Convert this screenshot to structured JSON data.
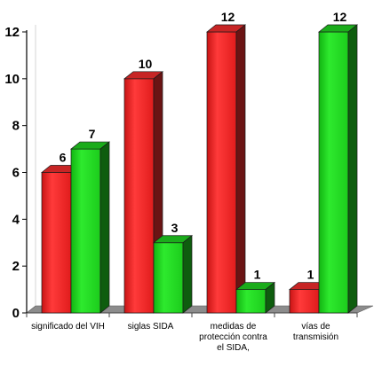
{
  "chart_data": {
    "type": "bar",
    "style": "3d-clustered",
    "categories": [
      [
        "significado del VIH"
      ],
      [
        "siglas SIDA"
      ],
      [
        "medidas de",
        "protección contra",
        "el SIDA,"
      ],
      [
        "vías de",
        "transmisión"
      ]
    ],
    "series": [
      {
        "values": [
          6,
          10,
          12,
          1
        ],
        "color": "#ff3030"
      },
      {
        "values": [
          7,
          3,
          1,
          12
        ],
        "color": "#22dd22"
      }
    ],
    "ylim": [
      0,
      12
    ],
    "yticks": [
      0,
      2,
      4,
      6,
      8,
      10,
      12
    ],
    "grid": false,
    "legend": "none",
    "floor_color": "#8c8c8c"
  }
}
